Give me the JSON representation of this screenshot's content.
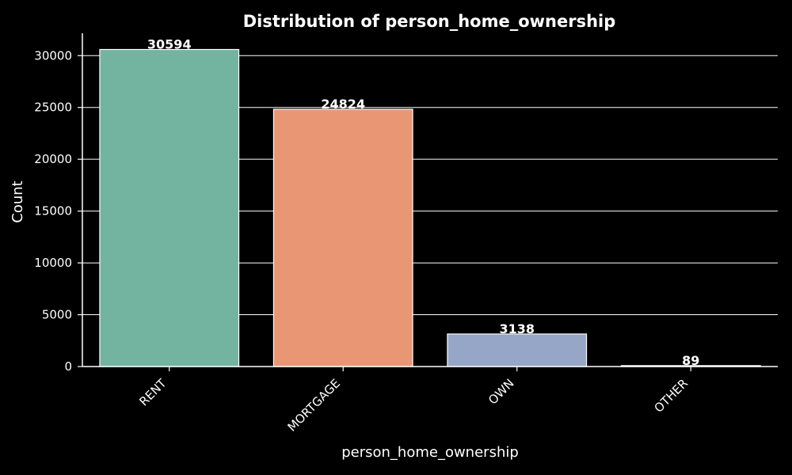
{
  "chart_data": {
    "type": "bar",
    "title": "Distribution of person_home_ownership",
    "xlabel": "person_home_ownership",
    "ylabel": "Count",
    "categories": [
      "RENT",
      "MORTGAGE",
      "OWN",
      "OTHER"
    ],
    "values": [
      30594,
      24824,
      3138,
      89
    ],
    "ylim": [
      0,
      32160
    ],
    "yticks": [
      0,
      5000,
      10000,
      15000,
      20000,
      25000,
      30000
    ],
    "grid": true,
    "background_color": "#000000",
    "text_color": "#ffffff",
    "grid_color": "#ffffff",
    "bar_colors": [
      "#72b4a0",
      "#e99675",
      "#95a6c6",
      "#d785b8"
    ],
    "bar_edge_color": "#ffffff"
  }
}
